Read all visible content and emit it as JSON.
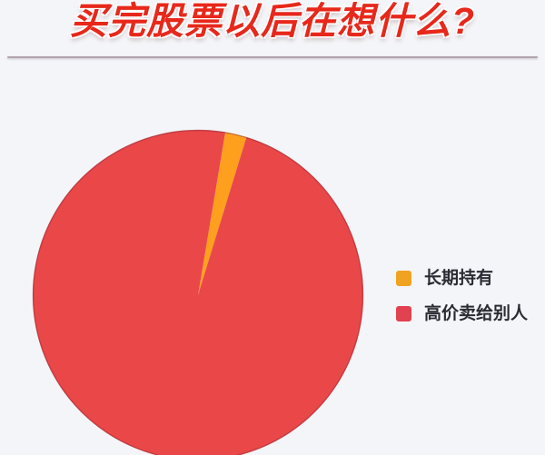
{
  "page": {
    "background_color": "#f4f5f8"
  },
  "header": {
    "title": "买完股票以后在想什么?",
    "title_color": "#e7281b",
    "divider_color": "#b2a3af"
  },
  "chart_data": {
    "type": "pie",
    "title": "买完股票以后在想什么?",
    "center": [
      218,
      325
    ],
    "radius": 182,
    "start_angle_deg_from_top": 9.5,
    "clockwise": true,
    "rim_color": "rgba(139, 42, 52, 0.45)",
    "legend_position": "right",
    "series": [
      {
        "name": "长期持有",
        "value_pct": 2.1,
        "color": "#fea01e"
      },
      {
        "name": "高价卖给别人",
        "value_pct": 97.9,
        "color": "#ea4749"
      }
    ]
  },
  "legend": {
    "items": [
      {
        "label": "长期持有",
        "color": "#f0a321"
      },
      {
        "label": "高价卖给别人",
        "color": "#e2414f"
      }
    ]
  }
}
